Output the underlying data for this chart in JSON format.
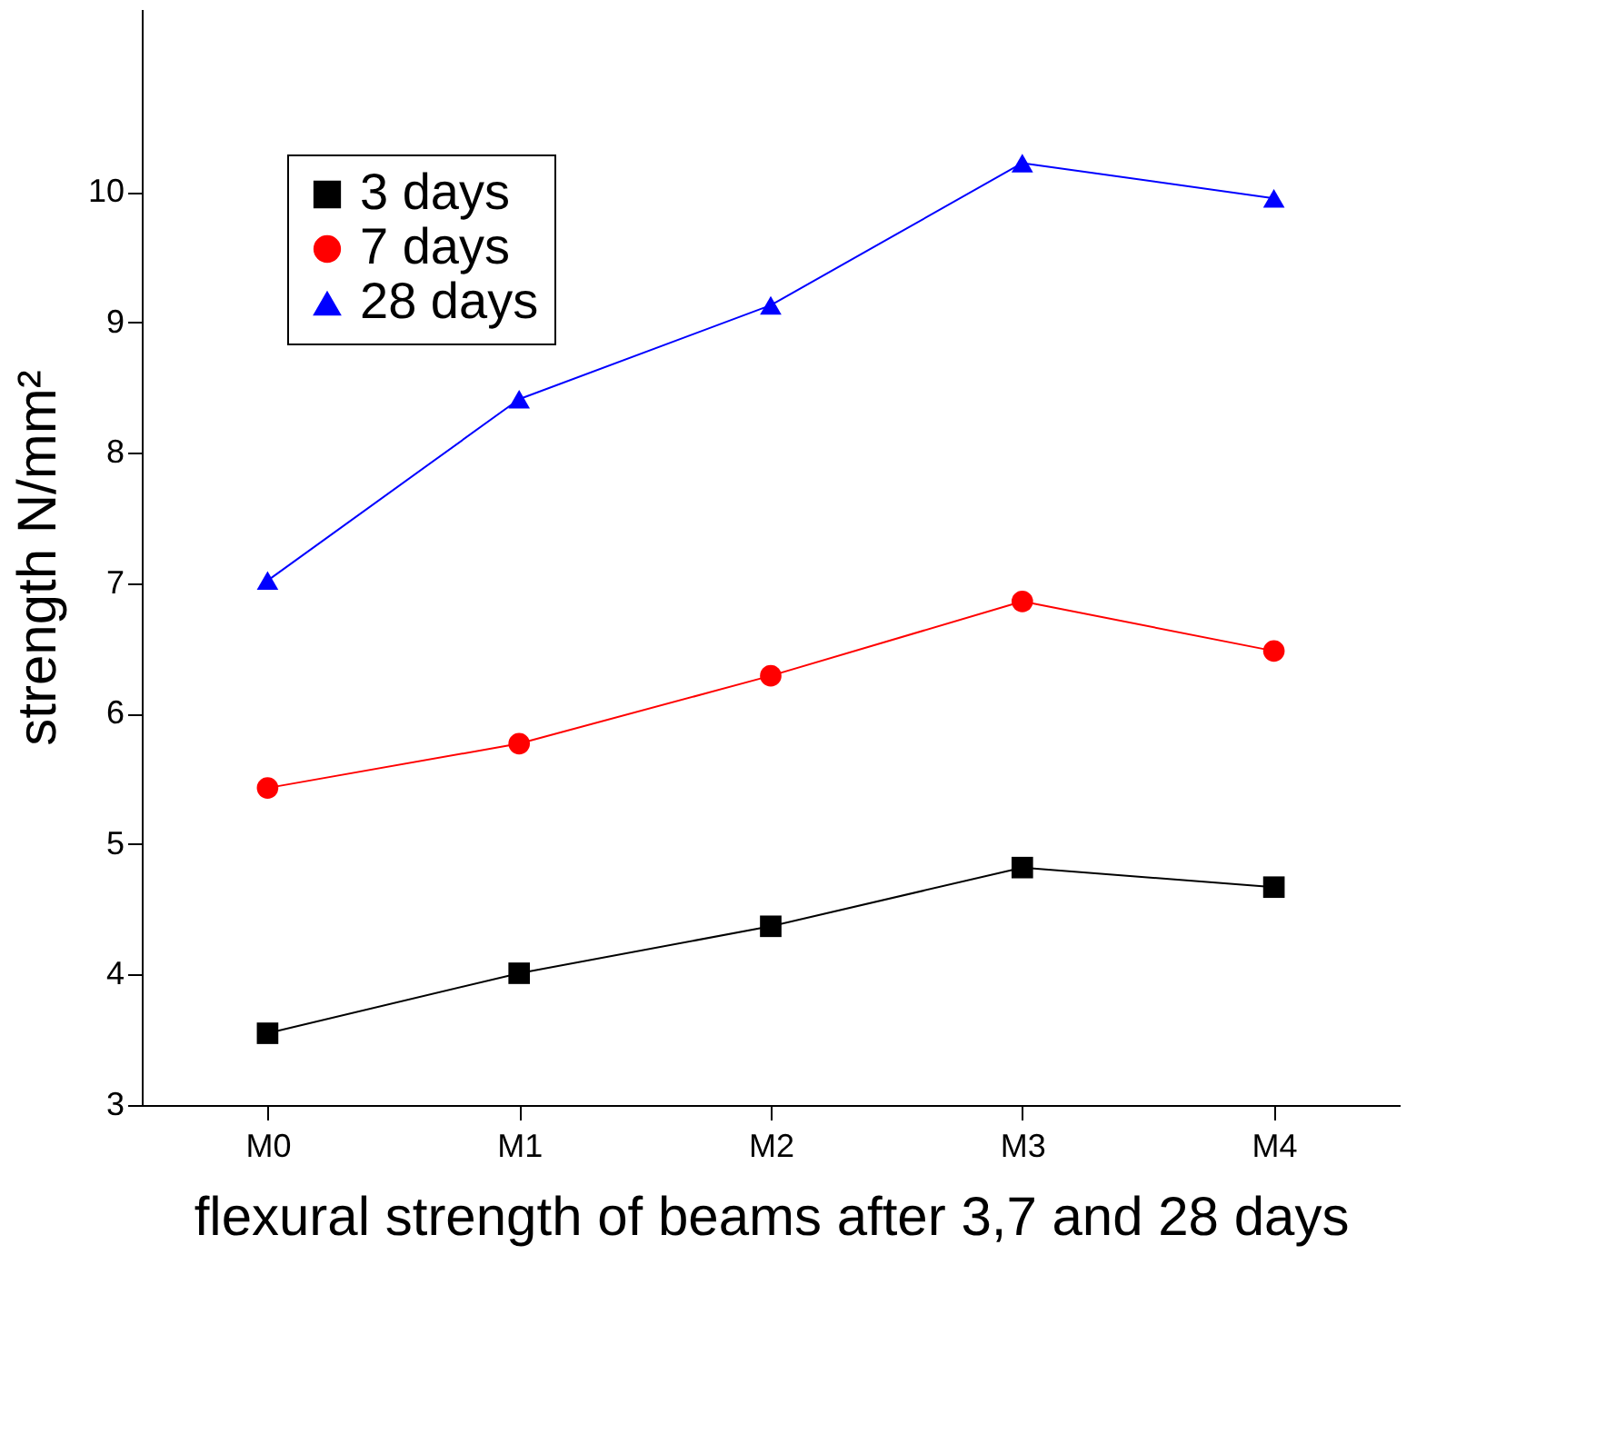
{
  "chart_data": {
    "type": "line",
    "xlabel": "flexural strength of beams after 3,7 and 28 days",
    "ylabel": "strength N/mm²",
    "categories": [
      "M0",
      "M1",
      "M2",
      "M3",
      "M4"
    ],
    "series": [
      {
        "name": "3 days",
        "color": "#000000",
        "marker": "square",
        "values": [
          3.55,
          4.01,
          4.37,
          4.82,
          4.67
        ]
      },
      {
        "name": "7 days",
        "color": "#ff0000",
        "marker": "circle",
        "values": [
          5.43,
          5.77,
          6.29,
          6.86,
          6.48
        ]
      },
      {
        "name": "28 days",
        "color": "#0000ff",
        "marker": "triangle",
        "values": [
          7.02,
          8.41,
          9.13,
          10.22,
          9.95
        ]
      }
    ],
    "ylim": [
      3,
      11.4
    ],
    "yticks": [
      3,
      4,
      5,
      6,
      7,
      8,
      9,
      10
    ],
    "grid": false,
    "legend": "top left",
    "line_style": "solid"
  }
}
